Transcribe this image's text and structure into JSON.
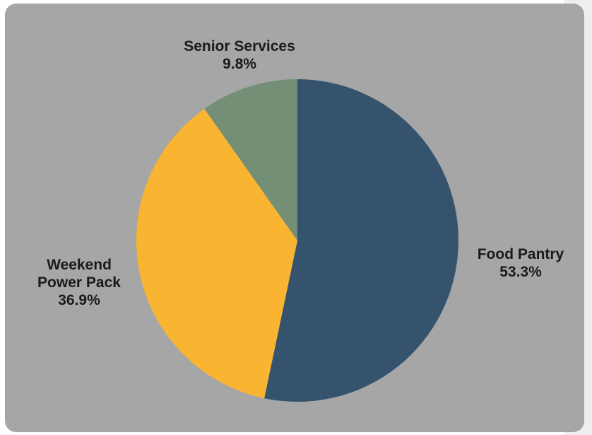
{
  "chart_data": {
    "type": "pie",
    "slices": [
      {
        "label_lines": [
          "Food Pantry"
        ],
        "percent_label": "53.3%",
        "value": 53.3,
        "color": "#36536e"
      },
      {
        "label_lines": [
          "Weekend",
          "Power Pack"
        ],
        "percent_label": "36.9%",
        "value": 36.9,
        "color": "#f9b532"
      },
      {
        "label_lines": [
          "Senior Services"
        ],
        "percent_label": "9.8%",
        "value": 9.8,
        "color": "#738f75"
      }
    ],
    "start_angle": "12 o'clock",
    "direction": "clockwise",
    "legend": "none",
    "background_color": "#a6a6a6"
  }
}
